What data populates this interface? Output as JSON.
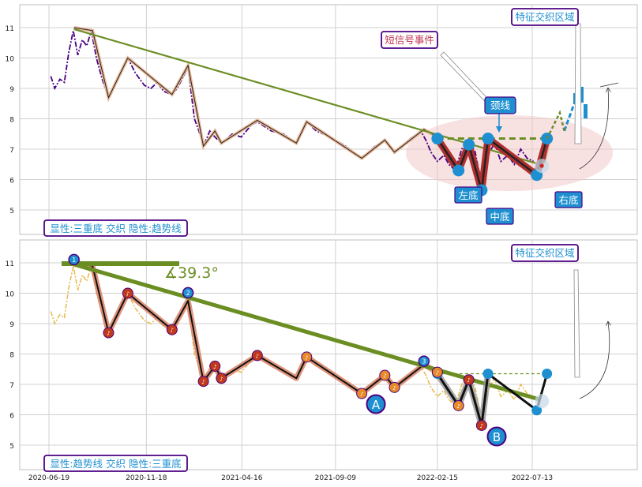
{
  "chart_data": [
    {
      "type": "line",
      "panel": "top",
      "ylim": [
        4.3,
        11.8
      ],
      "yticks": [
        5,
        6,
        7,
        8,
        9,
        10,
        11
      ],
      "x_range": [
        "2020-06-12",
        "2022-11-29"
      ],
      "grid": true,
      "legend_box": "显性:三重底 交织 隐性:趋势线",
      "price_series": [
        [
          "2020-06-22",
          9.4
        ],
        [
          "2020-06-28",
          9.0
        ],
        [
          "2020-07-06",
          9.3
        ],
        [
          "2020-07-13",
          9.2
        ],
        [
          "2020-07-20",
          10.2
        ],
        [
          "2020-07-27",
          10.9
        ],
        [
          "2020-08-03",
          10.1
        ],
        [
          "2020-08-10",
          10.6
        ],
        [
          "2020-08-17",
          10.4
        ],
        [
          "2020-08-24",
          10.9
        ],
        [
          "2020-09-01",
          10.0
        ],
        [
          "2020-09-10",
          9.3
        ],
        [
          "2020-09-20",
          8.7
        ],
        [
          "2020-10-01",
          9.2
        ],
        [
          "2020-10-10",
          9.6
        ],
        [
          "2020-10-20",
          10.0
        ],
        [
          "2020-11-01",
          9.5
        ],
        [
          "2020-11-15",
          9.1
        ],
        [
          "2020-11-25",
          9.0
        ],
        [
          "2020-12-05",
          9.2
        ],
        [
          "2020-12-15",
          8.9
        ],
        [
          "2020-12-28",
          8.8
        ],
        [
          "2021-01-05",
          9.0
        ],
        [
          "2021-01-15",
          9.4
        ],
        [
          "2021-01-22",
          9.7
        ],
        [
          "2021-02-01",
          8.0
        ],
        [
          "2021-02-08",
          7.6
        ],
        [
          "2021-02-15",
          7.1
        ],
        [
          "2021-02-25",
          7.6
        ],
        [
          "2021-03-05",
          7.4
        ],
        [
          "2021-03-15",
          7.2
        ],
        [
          "2021-04-01",
          7.5
        ],
        [
          "2021-04-15",
          7.4
        ],
        [
          "2021-05-01",
          7.8
        ],
        [
          "2021-05-10",
          7.9
        ],
        [
          "2021-06-01",
          7.6
        ],
        [
          "2021-06-20",
          7.5
        ],
        [
          "2021-07-10",
          7.2
        ],
        [
          "2021-07-26",
          7.9
        ],
        [
          "2021-08-10",
          7.6
        ],
        [
          "2021-09-01",
          7.4
        ],
        [
          "2021-09-25",
          7.1
        ],
        [
          "2021-10-20",
          6.7
        ],
        [
          "2021-11-10",
          7.1
        ],
        [
          "2021-11-25",
          7.3
        ],
        [
          "2021-12-10",
          6.9
        ],
        [
          "2022-01-01",
          7.3
        ],
        [
          "2022-01-20",
          7.6
        ],
        [
          "2022-01-28",
          7.3
        ],
        [
          "2022-02-05",
          6.9
        ],
        [
          "2022-02-15",
          6.6
        ],
        [
          "2022-02-25",
          6.8
        ],
        [
          "2022-03-05",
          6.5
        ],
        [
          "2022-03-15",
          6.3
        ],
        [
          "2022-03-25",
          7.0
        ],
        [
          "2022-04-05",
          7.3
        ],
        [
          "2022-04-15",
          6.9
        ],
        [
          "2022-04-25",
          5.8
        ],
        [
          "2022-05-05",
          6.8
        ],
        [
          "2022-05-15",
          7.2
        ],
        [
          "2022-05-25",
          6.6
        ],
        [
          "2022-06-05",
          6.8
        ],
        [
          "2022-06-15",
          6.5
        ],
        [
          "2022-06-25",
          7.0
        ],
        [
          "2022-07-05",
          6.7
        ],
        [
          "2022-07-15",
          6.6
        ]
      ],
      "zigzag": [
        [
          "2020-07-28",
          11.0
        ],
        [
          "2020-08-26",
          10.9
        ],
        [
          "2020-09-20",
          8.7
        ],
        [
          "2020-10-20",
          10.0
        ],
        [
          "2020-12-28",
          8.8
        ],
        [
          "2021-01-22",
          9.75
        ],
        [
          "2021-02-15",
          7.1
        ],
        [
          "2021-03-05",
          7.6
        ],
        [
          "2021-03-15",
          7.2
        ],
        [
          "2021-05-10",
          7.95
        ],
        [
          "2021-07-10",
          7.2
        ],
        [
          "2021-07-26",
          7.9
        ],
        [
          "2021-10-20",
          6.7
        ],
        [
          "2021-11-25",
          7.3
        ],
        [
          "2021-12-10",
          6.9
        ],
        [
          "2022-01-25",
          7.65
        ],
        [
          "2022-02-15",
          7.4
        ],
        [
          "2022-03-20",
          6.3
        ],
        [
          "2022-04-05",
          7.15
        ],
        [
          "2022-04-25",
          5.65
        ],
        [
          "2022-05-05",
          7.35
        ],
        [
          "2022-07-20",
          6.2
        ],
        [
          "2022-08-01",
          6.6
        ],
        [
          "2022-08-10",
          7.4
        ]
      ],
      "trendline": [
        [
          "2020-07-28",
          10.95
        ],
        [
          "2022-07-25",
          6.5
        ]
      ],
      "neckline": {
        "from": "2022-02-15",
        "to": "2022-08-10",
        "value": 7.35
      },
      "pattern_points": [
        [
          "2022-02-15",
          7.35
        ],
        [
          "2022-03-20",
          6.3
        ],
        [
          "2022-04-05",
          7.15
        ],
        [
          "2022-04-25",
          5.65
        ],
        [
          "2022-05-05",
          7.35
        ],
        [
          "2022-07-20",
          6.15
        ],
        [
          "2022-08-05",
          7.35
        ]
      ],
      "forecast": [
        [
          "2022-08-05",
          7.35
        ],
        [
          "2022-08-25",
          8.2
        ],
        [
          "2022-09-01",
          7.6
        ],
        [
          "2022-09-25",
          9.0
        ]
      ],
      "annotations": [
        {
          "text": "短信号事件",
          "style": "red"
        },
        {
          "text": "颈线",
          "style": "blue"
        },
        {
          "text": "左底",
          "style": "blue"
        },
        {
          "text": "中底",
          "style": "blue"
        },
        {
          "text": "右底",
          "style": "blue"
        },
        {
          "text": "特征交织区域",
          "style": "frame"
        }
      ]
    },
    {
      "type": "line",
      "panel": "bottom",
      "ylim": [
        4.3,
        11.8
      ],
      "yticks": [
        5,
        6,
        7,
        8,
        9,
        10,
        11
      ],
      "x_tick_labels": [
        "2020-06-19",
        "2020-11-18",
        "2021-04-16",
        "2021-09-09",
        "2022-02-15",
        "2022-07-13"
      ],
      "grid": true,
      "legend_box": "显性:趋势线 交织 隐性:三重底",
      "angle_label": "∡39.3°",
      "trend_points": [
        [
          "2020-07-28",
          "1"
        ],
        [
          "2021-01-22",
          "2"
        ],
        [
          "2022-01-25",
          "3"
        ]
      ],
      "point_labels": [
        "A",
        "B"
      ],
      "annotations": [
        {
          "text": "特征交织区域",
          "style": "frame"
        }
      ]
    }
  ]
}
